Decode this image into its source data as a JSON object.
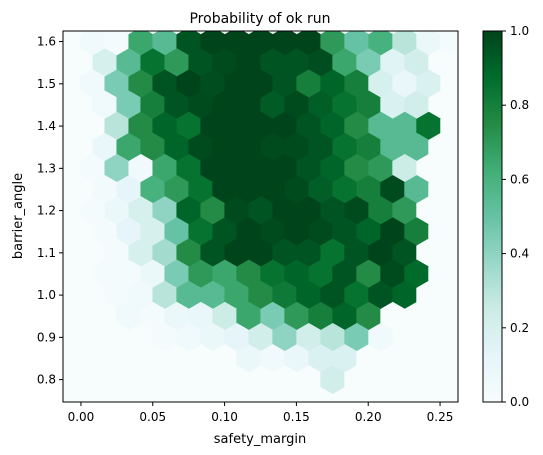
{
  "chart_data": {
    "type": "heatmap",
    "subtype": "hexbin",
    "title": "Probability of ok run",
    "xlabel": "safety_margin",
    "ylabel": "barrier_angle",
    "xlim": [
      -0.0125,
      0.2625
    ],
    "ylim": [
      0.747,
      1.625
    ],
    "x_ticks": [
      0.0,
      0.05,
      0.1,
      0.15,
      0.2,
      0.25
    ],
    "x_tick_labels": [
      "0.00",
      "0.05",
      "0.10",
      "0.15",
      "0.20",
      "0.25"
    ],
    "y_ticks": [
      0.8,
      0.9,
      1.0,
      1.1,
      1.2,
      1.3,
      1.4,
      1.5,
      1.6
    ],
    "y_tick_labels": [
      "0.8",
      "0.9",
      "1.0",
      "1.1",
      "1.2",
      "1.3",
      "1.4",
      "1.5",
      "1.6"
    ],
    "colorbar": {
      "colormap": "BuGn",
      "range": [
        0.0,
        1.0
      ],
      "ticks": [
        0.0,
        0.2,
        0.4,
        0.6,
        0.8,
        1.0
      ],
      "tick_labels": [
        "0.0",
        "0.2",
        "0.4",
        "0.6",
        "0.8",
        "1.0"
      ],
      "position": "right"
    },
    "hex_grid": {
      "x0": 0.0,
      "dx": 0.0167,
      "y_min": 0.76,
      "y_max": 1.63,
      "row_step": 0.0485,
      "columns": 16
    },
    "rows": [
      {
        "y": 1.6,
        "shift": 1,
        "values": [
          0.05,
          0.02,
          0.65,
          0.55,
          0.95,
          1.0,
          1.0,
          1.0,
          1.0,
          1.0,
          0.7,
          0.5,
          0.6,
          0.3,
          0.08,
          0.02
        ]
      },
      {
        "y": 1.55,
        "shift": 0,
        "values": [
          0.0,
          0.2,
          0.55,
          0.85,
          0.7,
          0.95,
          0.98,
          1.0,
          0.95,
          0.95,
          0.97,
          0.65,
          0.45,
          0.15,
          0.22,
          0.0
        ]
      },
      {
        "y": 1.5,
        "shift": 1,
        "values": [
          0.05,
          0.45,
          0.75,
          0.95,
          1.0,
          0.97,
          1.0,
          1.0,
          0.95,
          0.8,
          0.9,
          0.8,
          0.2,
          0.1,
          0.18,
          0.0
        ]
      },
      {
        "y": 1.45,
        "shift": 0,
        "values": [
          0.0,
          0.05,
          0.45,
          0.8,
          0.95,
          0.98,
          1.0,
          1.0,
          0.93,
          0.98,
          0.92,
          0.85,
          0.8,
          0.18,
          0.22,
          0.0
        ]
      },
      {
        "y": 1.4,
        "shift": 1,
        "values": [
          0.0,
          0.3,
          0.75,
          0.9,
          0.85,
          1.0,
          1.0,
          1.0,
          1.0,
          0.95,
          0.9,
          0.75,
          0.55,
          0.55,
          0.85,
          0.0
        ]
      },
      {
        "y": 1.35,
        "shift": 0,
        "values": [
          0.0,
          0.1,
          0.65,
          0.75,
          0.9,
          0.98,
          1.0,
          1.0,
          0.98,
          0.98,
          0.95,
          0.85,
          0.8,
          0.55,
          0.55,
          0.0
        ]
      },
      {
        "y": 1.3,
        "shift": 1,
        "values": [
          0.02,
          0.4,
          0.05,
          0.65,
          0.85,
          1.0,
          1.0,
          1.0,
          1.0,
          0.95,
          0.9,
          0.75,
          0.7,
          0.25,
          0.0,
          0.0
        ]
      },
      {
        "y": 1.25,
        "shift": 0,
        "values": [
          0.0,
          0.03,
          0.12,
          0.6,
          0.7,
          0.85,
          1.0,
          1.0,
          1.0,
          0.98,
          0.92,
          0.85,
          0.8,
          0.98,
          0.55,
          0.0
        ]
      },
      {
        "y": 1.2,
        "shift": 1,
        "values": [
          0.02,
          0.08,
          0.2,
          0.4,
          0.9,
          0.75,
          0.98,
          0.95,
          1.0,
          1.0,
          0.95,
          0.98,
          0.8,
          0.7,
          0.0,
          0.0
        ]
      },
      {
        "y": 1.15,
        "shift": 0,
        "values": [
          0.0,
          0.02,
          0.12,
          0.2,
          0.5,
          0.85,
          0.95,
          1.0,
          0.98,
          1.0,
          0.98,
          0.95,
          0.9,
          1.0,
          0.8,
          0.0
        ]
      },
      {
        "y": 1.1,
        "shift": 1,
        "values": [
          0.0,
          0.02,
          0.2,
          0.35,
          0.75,
          0.95,
          1.0,
          1.0,
          0.95,
          0.95,
          0.85,
          0.95,
          1.0,
          0.95,
          0.0,
          0.0
        ]
      },
      {
        "y": 1.05,
        "shift": 0,
        "values": [
          0.0,
          0.02,
          0.02,
          0.08,
          0.45,
          0.7,
          0.65,
          0.75,
          0.85,
          0.9,
          0.85,
          0.95,
          0.75,
          0.98,
          0.88,
          0.0
        ]
      },
      {
        "y": 1.0,
        "shift": 1,
        "values": [
          0.0,
          0.02,
          0.05,
          0.3,
          0.55,
          0.55,
          0.65,
          0.75,
          0.82,
          0.9,
          0.95,
          0.85,
          0.95,
          0.9,
          0.0,
          0.0
        ]
      },
      {
        "y": 0.95,
        "shift": 0,
        "values": [
          0.0,
          0.0,
          0.05,
          0.02,
          0.08,
          0.1,
          0.25,
          0.65,
          0.45,
          0.7,
          0.8,
          0.9,
          0.75,
          0.0,
          0.0,
          0.0
        ]
      },
      {
        "y": 0.9,
        "shift": 1,
        "values": [
          0.0,
          0.0,
          0.0,
          0.02,
          0.05,
          0.08,
          0.12,
          0.22,
          0.4,
          0.22,
          0.3,
          0.45,
          0.05,
          0.0,
          0.0,
          0.0
        ]
      },
      {
        "y": 0.85,
        "shift": 0,
        "values": [
          0.0,
          0.0,
          0.0,
          0.0,
          0.0,
          0.0,
          0.0,
          0.08,
          0.05,
          0.1,
          0.18,
          0.18,
          0.0,
          0.0,
          0.0,
          0.0
        ]
      },
      {
        "y": 0.8,
        "shift": 1,
        "values": [
          0.0,
          0.0,
          0.0,
          0.0,
          0.0,
          0.0,
          0.0,
          0.0,
          0.0,
          0.0,
          0.22,
          0.0,
          0.0,
          0.0,
          0.0,
          0.0
        ]
      }
    ]
  }
}
